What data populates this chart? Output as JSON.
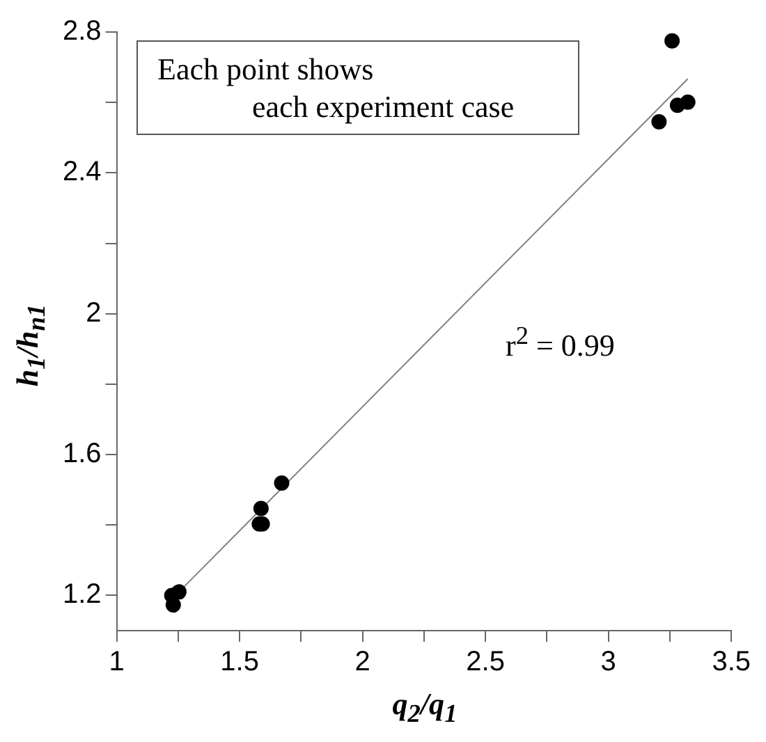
{
  "chart_data": {
    "type": "scatter",
    "xlabel": "q$_{2}$/q$_{1}$",
    "ylabel": "h$_{1}$/h$_{n1}$",
    "annotations": [
      "Each point shows\neach experiment case",
      "r$^{2}$ = 0.99"
    ],
    "xlim": [
      1,
      3.5
    ],
    "ylim": [
      1.1,
      2.8
    ],
    "xticks": [
      1,
      {
        "value": 1.25,
        "label": null
      },
      1.5,
      {
        "value": 1.75,
        "label": null
      },
      2,
      {
        "value": 2.25,
        "label": null
      },
      2.5,
      {
        "value": 2.75,
        "label": null
      },
      3,
      {
        "value": 3.25,
        "label": null
      },
      3.5
    ],
    "yticks": [
      1.2,
      {
        "value": 1.4,
        "label": null
      },
      1.6,
      {
        "value": 1.8,
        "label": null
      },
      2,
      {
        "value": 2.2,
        "label": null
      },
      2.4,
      {
        "value": 2.6,
        "label": null
      },
      2.8
    ],
    "grid": false,
    "legend": false,
    "marker": "circle",
    "series": [
      {
        "color": "#000000",
        "x": [
          1.224,
          1.23,
          1.253,
          1.587,
          1.58,
          1.592,
          1.671,
          3.206,
          3.259,
          3.281,
          3.323
        ],
        "values": [
          1.2,
          1.173,
          1.21,
          1.447,
          1.403,
          1.403,
          1.519,
          2.545,
          2.775,
          2.592,
          2.601
        ]
      },
      {
        "type": "line",
        "color": "#808080",
        "marker": "none",
        "x": [
          1.253,
          3.323
        ],
        "values": [
          1.21,
          2.667
        ]
      }
    ]
  }
}
